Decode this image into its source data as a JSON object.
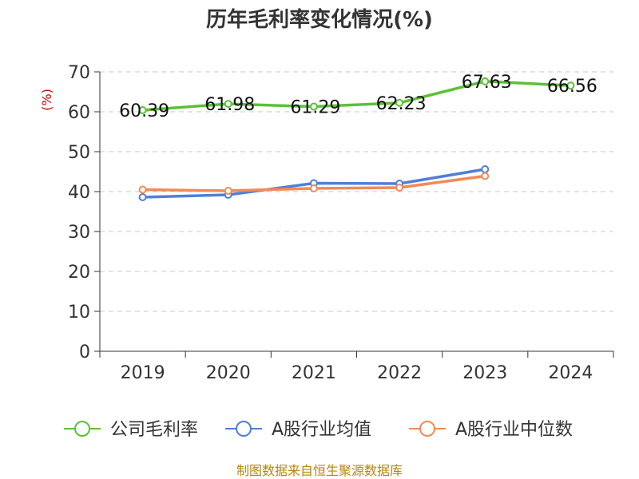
{
  "chart_data": {
    "type": "line",
    "title": "历年毛利率变化情况(%)",
    "ylabel": "(%)",
    "xlabel": "",
    "categories": [
      "2019",
      "2020",
      "2021",
      "2022",
      "2023",
      "2024"
    ],
    "ylim": [
      0,
      70
    ],
    "yticks": [
      0,
      10,
      20,
      30,
      40,
      50,
      60,
      70
    ],
    "grid": true,
    "legend_position": "bottom",
    "series": [
      {
        "name": "公司毛利率",
        "color": "#5ac235",
        "values": [
          60.39,
          61.98,
          61.29,
          62.23,
          67.63,
          66.56
        ],
        "labels": [
          "60.39",
          "61.98",
          "61.29",
          "62.23",
          "67.63",
          "66.56"
        ]
      },
      {
        "name": "A股行业均值",
        "color": "#4f7fd8",
        "values": [
          38.6,
          39.2,
          42.1,
          42.0,
          45.6,
          null
        ]
      },
      {
        "name": "A股行业中位数",
        "color": "#f28a58",
        "values": [
          40.5,
          40.2,
          40.8,
          41.0,
          43.9,
          null
        ]
      }
    ]
  },
  "footer": {
    "source": "制图数据来自恒生聚源数据库"
  }
}
